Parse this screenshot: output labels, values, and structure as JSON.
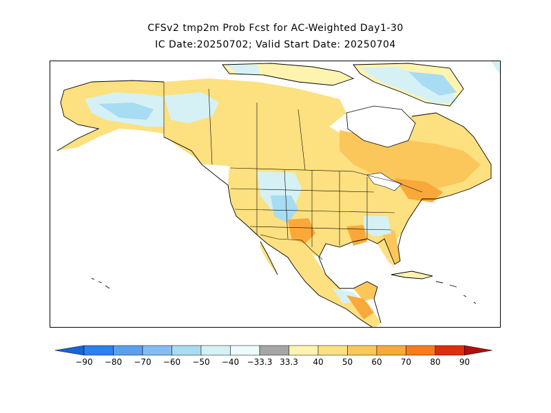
{
  "title": {
    "line1": "CFSv2 tmp2m Prob Fcst for AC-Weighted Day1-30",
    "line2": "IC Date:20250702; Valid Start Date: 20250704"
  },
  "legend": {
    "labels": [
      "-90",
      "-80",
      "-70",
      "-60",
      "-50",
      "-40",
      "-33.3",
      "33.3",
      "40",
      "50",
      "60",
      "70",
      "80",
      "90"
    ],
    "colors": {
      "lt_m90": "#1565d8",
      "m90_m80": "#2b82ee",
      "m80_m70": "#5aa0f0",
      "m70_m60": "#82bdf5",
      "m60_m50": "#a7dcf3",
      "m50_m40": "#d5f1f6",
      "m40_m333": "#eafcfc",
      "m333_333": "#a6a6a6",
      "p333_40": "#fff3b0",
      "p40_50": "#fde07f",
      "p50_60": "#fbc75a",
      "p60_70": "#f9a93a",
      "p70_80": "#f97b1e",
      "p80_90": "#e02d0a",
      "gt_90": "#b50d0d"
    }
  },
  "map": {
    "region": "North America",
    "background": "#ffffff",
    "outline": "#000000"
  }
}
